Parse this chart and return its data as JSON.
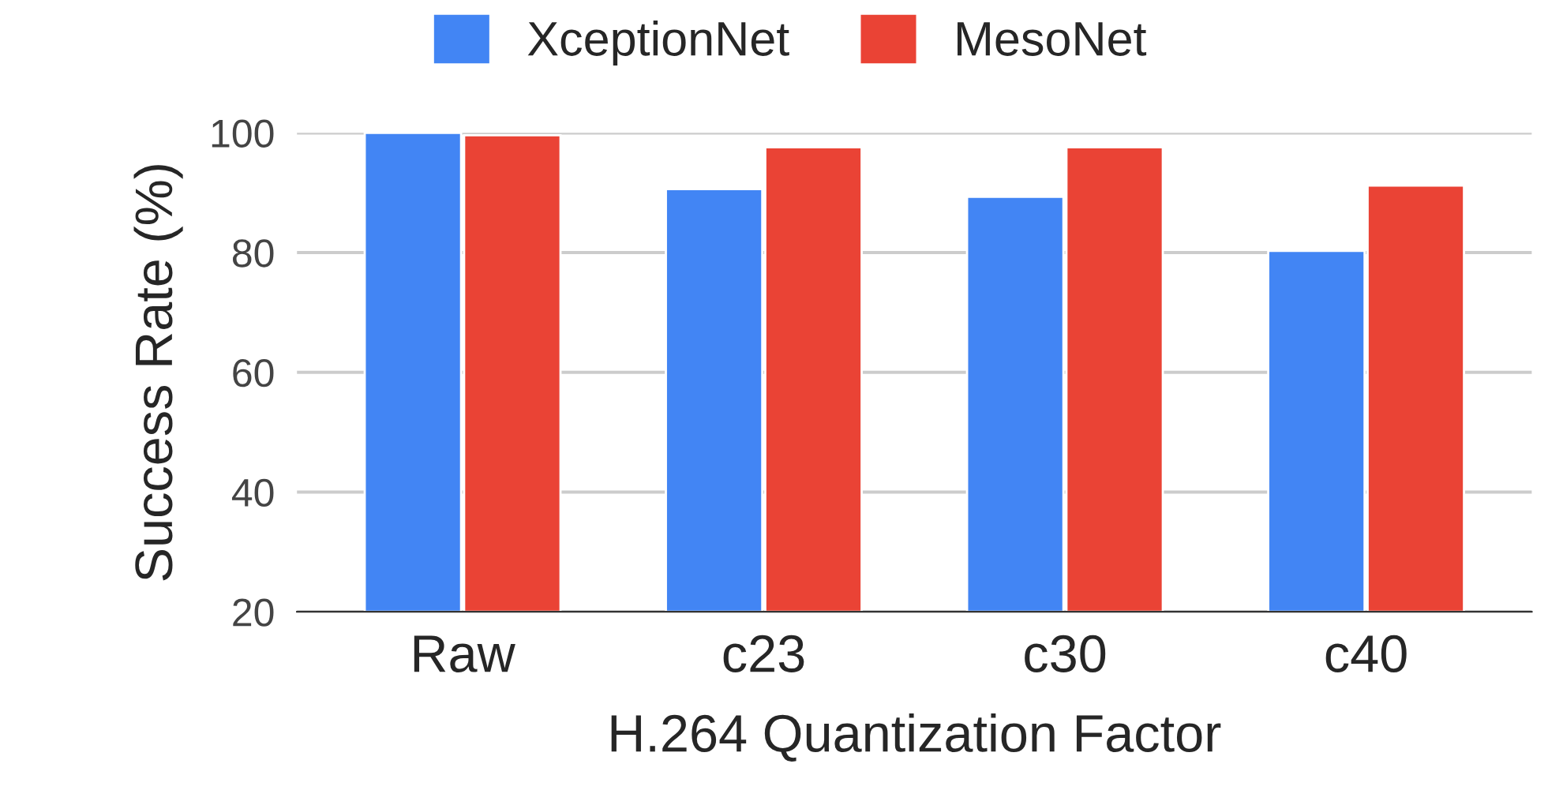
{
  "chart_data": {
    "type": "bar",
    "xlabel": "H.264 Quantization Factor",
    "ylabel": "Success Rate (%)",
    "categories": [
      "Raw",
      "c23",
      "c30",
      "c40"
    ],
    "series": [
      {
        "name": "XceptionNet",
        "color": "#4285f4",
        "values": [
          100,
          90.6,
          89.3,
          80.3
        ]
      },
      {
        "name": "MesoNet",
        "color": "#ea4335",
        "values": [
          99.6,
          97.6,
          97.6,
          91.2
        ]
      }
    ],
    "ylim": [
      20,
      100
    ],
    "yticks": [
      20,
      40,
      60,
      80,
      100
    ],
    "grid": "y",
    "legend": "top"
  }
}
